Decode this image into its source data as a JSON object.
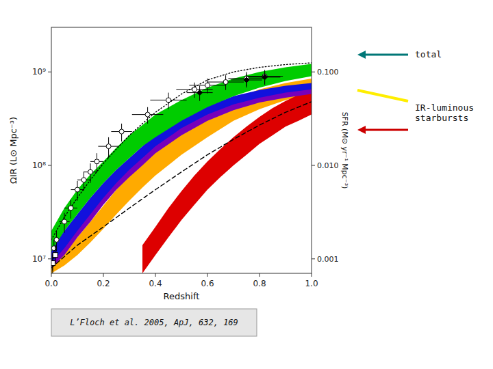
{
  "chart_data": {
    "type": "line",
    "xlabel": "Redshift",
    "ylabel": "ΩIR (L⊙ Mpc⁻³)",
    "y2label": "SFR (M⊙ yr⁻¹ Mpc⁻³)",
    "log": "y",
    "grid": false,
    "xlim": [
      0.0,
      1.0
    ],
    "ylim": [
      7000000.0,
      3000000000.0
    ],
    "y2lim": [
      0.0007,
      0.3
    ],
    "xticks": [
      {
        "value": 0,
        "label": "0.0"
      },
      0.2,
      0.4,
      0.6,
      0.8,
      {
        "value": 1,
        "label": "1.0"
      }
    ],
    "yticks": [
      {
        "value": 10000000.0,
        "label": "10⁷"
      },
      {
        "value": 100000000.0,
        "label": "10⁸"
      },
      {
        "value": 1000000000.0,
        "label": "10⁹"
      }
    ],
    "y2ticks": [
      0.001,
      {
        "value": 0.01,
        "label": "0.010"
      },
      {
        "value": 0.1,
        "label": "0.100"
      }
    ],
    "annotations": [
      {
        "text": "total",
        "symbols": [
          {
            "color": "#007777",
            "marker": "arrow"
          }
        ]
      },
      {
        "text": "IR-luminous\nstarbursts",
        "symbols": [
          {
            "color": "#ffee00",
            "marker": "line"
          },
          {
            "color": "#cc0000",
            "marker": "arrow"
          }
        ]
      },
      {
        "text": "L’Floch et al. 2005, ApJ, 632, 169"
      }
    ],
    "series": [
      {
        "type": "band",
        "color": "#ffaa00",
        "x": [
          0.0,
          0.05,
          0.1,
          0.15,
          0.2,
          0.25,
          0.3,
          0.35,
          0.4,
          0.5,
          0.6,
          0.7,
          0.8,
          0.9,
          1.0
        ],
        "low": [
          7000000.0,
          8500000.0,
          11000000.0,
          15000000.0,
          21000000.0,
          30000000.0,
          42000000.0,
          58000000.0,
          78000000.0,
          130000000.0,
          200000000.0,
          300000000.0,
          400000000.0,
          500000000.0,
          590000000.0
        ],
        "high": [
          9000000.0,
          12000000.0,
          17000000.0,
          25000000.0,
          37000000.0,
          55000000.0,
          77000000.0,
          110000000.0,
          150000000.0,
          240000000.0,
          360000000.0,
          510000000.0,
          650000000.0,
          760000000.0,
          850000000.0
        ]
      },
      {
        "type": "band",
        "color": "#dd0000",
        "x": [
          0.35,
          0.4,
          0.45,
          0.5,
          0.55,
          0.6,
          0.65,
          0.7,
          0.75,
          0.8,
          0.85,
          0.9,
          0.95,
          1.0
        ],
        "low": [
          7000000.0,
          11000000.0,
          17000000.0,
          26000000.0,
          38000000.0,
          55000000.0,
          75000000.0,
          100000000.0,
          130000000.0,
          170000000.0,
          210000000.0,
          260000000.0,
          300000000.0,
          350000000.0
        ],
        "high": [
          14000000.0,
          22000000.0,
          35000000.0,
          53000000.0,
          78000000.0,
          110000000.0,
          150000000.0,
          200000000.0,
          260000000.0,
          330000000.0,
          410000000.0,
          490000000.0,
          570000000.0,
          650000000.0
        ]
      },
      {
        "type": "band",
        "color": "#7700bb",
        "x": [
          0.0,
          0.05,
          0.1,
          0.15,
          0.2,
          0.25,
          0.3,
          0.35,
          0.4,
          0.5,
          0.6,
          0.7,
          0.8,
          0.9,
          1.0
        ],
        "low": [
          8000000.0,
          11000000.0,
          17000000.0,
          25000000.0,
          38000000.0,
          55000000.0,
          75000000.0,
          100000000.0,
          135000000.0,
          210000000.0,
          300000000.0,
          390000000.0,
          470000000.0,
          530000000.0,
          580000000.0
        ],
        "high": [
          10000000.0,
          15000000.0,
          23000000.0,
          35000000.0,
          52000000.0,
          75000000.0,
          100000000.0,
          140000000.0,
          180000000.0,
          280000000.0,
          390000000.0,
          500000000.0,
          590000000.0,
          660000000.0,
          710000000.0
        ]
      },
      {
        "type": "band",
        "color": "#1111dd",
        "x": [
          0.0,
          0.05,
          0.1,
          0.15,
          0.2,
          0.25,
          0.3,
          0.35,
          0.4,
          0.5,
          0.6,
          0.7,
          0.8,
          0.9,
          1.0
        ],
        "low": [
          9000000.0,
          13000000.0,
          20000000.0,
          30000000.0,
          45000000.0,
          65000000.0,
          90000000.0,
          120000000.0,
          160000000.0,
          250000000.0,
          350000000.0,
          450000000.0,
          530000000.0,
          600000000.0,
          650000000.0
        ],
        "high": [
          13000000.0,
          20000000.0,
          30000000.0,
          45000000.0,
          65000000.0,
          90000000.0,
          120000000.0,
          160000000.0,
          210000000.0,
          310000000.0,
          430000000.0,
          550000000.0,
          640000000.0,
          710000000.0,
          760000000.0
        ]
      },
      {
        "type": "band",
        "color": "#00cc00",
        "x": [
          0.0,
          0.05,
          0.1,
          0.15,
          0.2,
          0.25,
          0.3,
          0.35,
          0.4,
          0.5,
          0.6,
          0.7,
          0.8,
          0.9,
          1.0
        ],
        "low": [
          12000000.0,
          20000000.0,
          30000000.0,
          45000000.0,
          65000000.0,
          90000000.0,
          120000000.0,
          160000000.0,
          200000000.0,
          300000000.0,
          420000000.0,
          550000000.0,
          680000000.0,
          800000000.0,
          900000000.0
        ],
        "high": [
          20000000.0,
          35000000.0,
          55000000.0,
          80000000.0,
          110000000.0,
          155000000.0,
          210000000.0,
          270000000.0,
          350000000.0,
          500000000.0,
          680000000.0,
          850000000.0,
          1000000000.0,
          1120000000.0,
          1220000000.0
        ]
      },
      {
        "type": "line",
        "color": "#000000",
        "line_style": "dashed",
        "x": [
          0.0,
          0.1,
          0.2,
          0.3,
          0.4,
          0.5,
          0.6,
          0.7,
          0.8,
          0.9,
          1.0
        ],
        "values": [
          8000000.0,
          14000000.0,
          22000000.0,
          35000000.0,
          55000000.0,
          85000000.0,
          130000000.0,
          190000000.0,
          270000000.0,
          370000000.0,
          480000000.0
        ]
      },
      {
        "type": "line",
        "color": "#000000",
        "line_style": "dotted",
        "x": [
          0.0,
          0.05,
          0.1,
          0.15,
          0.2,
          0.25,
          0.3,
          0.35,
          0.4,
          0.5,
          0.6,
          0.7,
          0.8,
          0.9,
          1.0
        ],
        "values": [
          16000000.0,
          28000000.0,
          45000000.0,
          70000000.0,
          105000000.0,
          150000000.0,
          210000000.0,
          280000000.0,
          370000000.0,
          580000000.0,
          820000000.0,
          1000000000.0,
          1120000000.0,
          1200000000.0,
          1250000000.0
        ]
      },
      {
        "type": "scatter",
        "color": "#000000",
        "marker": "circle-open",
        "x": [
          0.01,
          0.02,
          0.05,
          0.075,
          0.1,
          0.125,
          0.15,
          0.175,
          0.22,
          0.27,
          0.37,
          0.45,
          0.55,
          0.6,
          0.67,
          0.75,
          0.82
        ],
        "values": [
          13000000.0,
          16000000.0,
          25000000.0,
          35000000.0,
          55000000.0,
          70000000.0,
          85000000.0,
          110000000.0,
          160000000.0,
          230000000.0,
          350000000.0,
          500000000.0,
          650000000.0,
          720000000.0,
          780000000.0,
          850000000.0,
          900000000.0
        ],
        "xerr": [
          0.01,
          0.01,
          0.02,
          0.025,
          0.025,
          0.025,
          0.025,
          0.025,
          0.04,
          0.04,
          0.06,
          0.07,
          0.07,
          0.07,
          0.07,
          0.07,
          0.07
        ],
        "yerr_low": [
          3000000.0,
          4000000.0,
          6000000.0,
          8000000.0,
          13000000.0,
          16000000.0,
          20000000.0,
          25000000.0,
          40000000.0,
          50000000.0,
          70000000.0,
          100000000.0,
          120000000.0,
          130000000.0,
          140000000.0,
          150000000.0,
          150000000.0
        ],
        "yerr_high": [
          3000000.0,
          4000000.0,
          6000000.0,
          8000000.0,
          13000000.0,
          16000000.0,
          20000000.0,
          25000000.0,
          40000000.0,
          50000000.0,
          70000000.0,
          100000000.0,
          120000000.0,
          130000000.0,
          140000000.0,
          150000000.0,
          150000000.0
        ]
      },
      {
        "type": "scatter",
        "color": "#000000",
        "marker": "diamond",
        "x": [
          0.005,
          0.015,
          0.57,
          0.75,
          0.82
        ],
        "values": [
          9000000.0,
          11000000.0,
          600000000.0,
          820000000.0,
          880000000.0
        ],
        "xerr": [
          0.005,
          0.008,
          0.05,
          0.06,
          0.06
        ],
        "yerr_low": [
          2000000.0,
          2500000.0,
          110000000.0,
          140000000.0,
          150000000.0
        ],
        "yerr_high": [
          2000000.0,
          2500000.0,
          110000000.0,
          140000000.0,
          150000000.0
        ]
      },
      {
        "type": "scatter",
        "color": "#000000",
        "marker": "square-open",
        "x": [
          0.005,
          0.015
        ],
        "values": [
          9000000.0,
          11000000.0
        ],
        "xerr": [
          0.004,
          0.007
        ],
        "yerr_low": [
          1500000.0,
          2000000.0
        ],
        "yerr_high": [
          2500000.0,
          3000000.0
        ]
      }
    ]
  }
}
